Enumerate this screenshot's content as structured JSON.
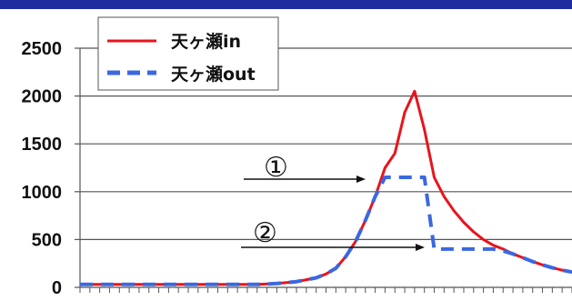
{
  "chart_data": {
    "type": "line",
    "title": "",
    "xlabel": "",
    "ylabel": "",
    "ylim": [
      0,
      2500
    ],
    "yticks": [
      0,
      500,
      1000,
      1500,
      2000,
      2500
    ],
    "grid": true,
    "legend_position": "top-left",
    "x": [
      0,
      1,
      2,
      3,
      4,
      5,
      6,
      7,
      8,
      9,
      10,
      11,
      12,
      13,
      14,
      15,
      16,
      17,
      18,
      19,
      20,
      21,
      22,
      23,
      24,
      25,
      26,
      27,
      28,
      29,
      30,
      31,
      32,
      33,
      34,
      35,
      36,
      37,
      38,
      39,
      40,
      41,
      42,
      43,
      44,
      45,
      46,
      47,
      48,
      49,
      50
    ],
    "series": [
      {
        "name": "天ヶ瀬in",
        "color": "#e8141c",
        "style": "solid",
        "values": [
          30,
          30,
          30,
          30,
          30,
          30,
          30,
          30,
          30,
          30,
          30,
          30,
          30,
          30,
          30,
          30,
          30,
          30,
          30,
          35,
          40,
          50,
          60,
          80,
          100,
          140,
          200,
          320,
          480,
          700,
          950,
          1250,
          1400,
          1830,
          2050,
          1650,
          1150,
          950,
          800,
          680,
          580,
          500,
          440,
          400,
          350,
          310,
          270,
          235,
          205,
          180,
          160
        ]
      },
      {
        "name": "天ヶ瀬out",
        "color": "#3b68e0",
        "style": "dashed",
        "values": [
          30,
          30,
          30,
          30,
          30,
          30,
          30,
          30,
          30,
          30,
          30,
          30,
          30,
          30,
          30,
          30,
          30,
          30,
          30,
          35,
          40,
          50,
          60,
          80,
          100,
          140,
          200,
          320,
          480,
          700,
          950,
          1150,
          1150,
          1150,
          1150,
          1150,
          400,
          400,
          400,
          400,
          400,
          400,
          400,
          380,
          350,
          310,
          270,
          235,
          205,
          180,
          160
        ]
      }
    ],
    "annotations": [
      "①",
      "②"
    ]
  }
}
